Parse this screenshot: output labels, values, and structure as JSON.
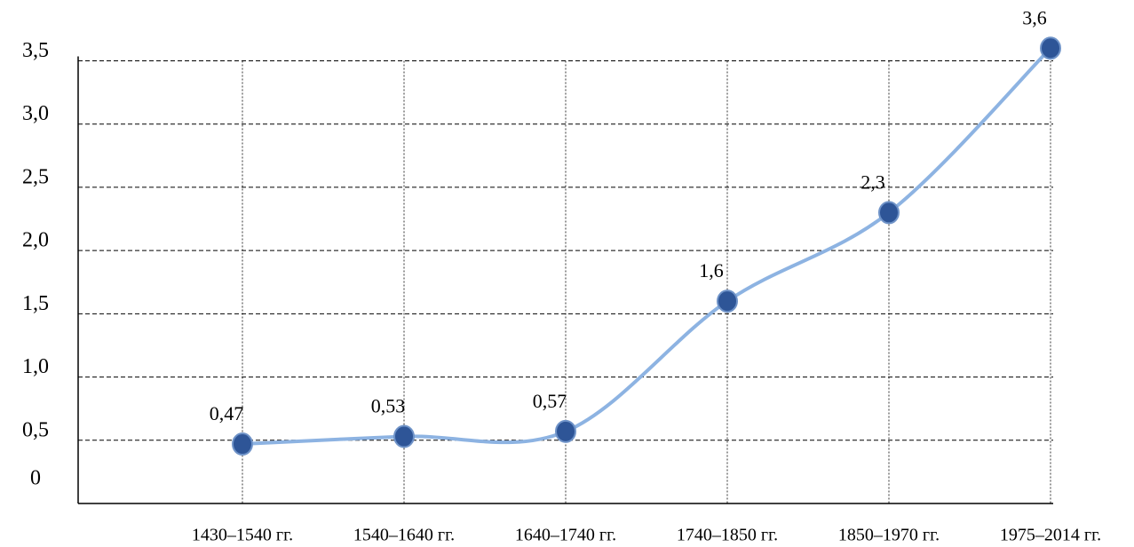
{
  "chart_data": {
    "type": "line",
    "categories": [
      "1430–1540 гг.",
      "1540–1640 гг.",
      "1640–1740 гг.",
      "1740–1850 гг.",
      "1850–1970 гг.",
      "1975–2014 гг."
    ],
    "values": [
      0.47,
      0.53,
      0.57,
      1.6,
      2.3,
      3.6
    ],
    "value_labels": [
      "0,47",
      "0,53",
      "0,57",
      "1,6",
      "2,3",
      "3,6"
    ],
    "color": "#8db3e2",
    "marker_color": "#2e5597",
    "ylim": [
      0,
      3.7
    ],
    "yticks": [
      0,
      {
        "value": 0.5,
        "label": "0,5"
      },
      {
        "value": 1.0,
        "label": "1,0"
      },
      {
        "value": 1.5,
        "label": "1,5"
      },
      {
        "value": 2.0,
        "label": "2,0"
      },
      {
        "value": 2.5,
        "label": "2,5"
      },
      {
        "value": 3.0,
        "label": "3,0"
      },
      {
        "value": 3.5,
        "label": "3,5"
      }
    ],
    "grid": true
  }
}
